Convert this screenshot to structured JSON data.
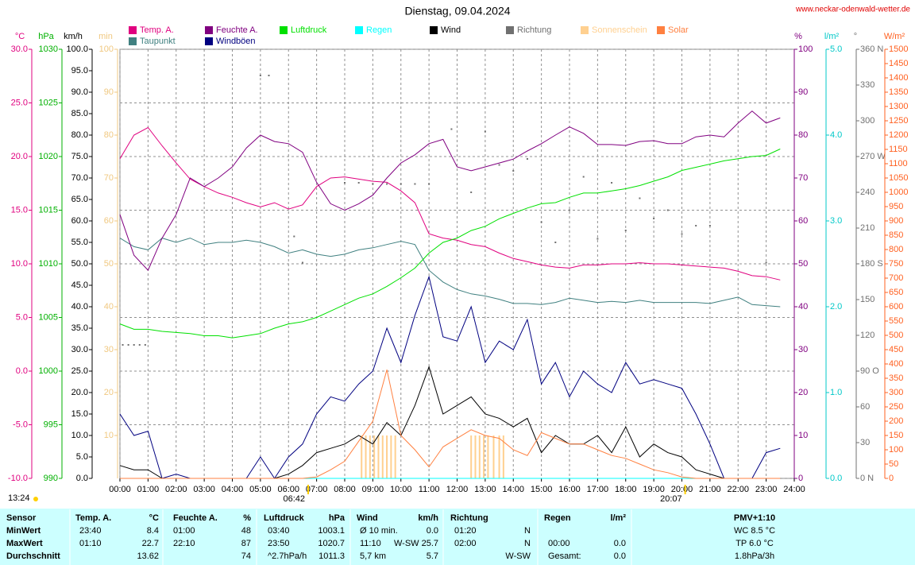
{
  "chart_data": {
    "type": "line",
    "title": "Dienstag, 09.04.2024",
    "source": "www.neckar-odenwald-wetter.de",
    "grid": true,
    "xlim": [
      0,
      24
    ],
    "xticks": [
      {
        "value": 0,
        "label": "00:00"
      },
      {
        "value": 1,
        "label": "01:00"
      },
      {
        "value": 2,
        "label": "02:00"
      },
      {
        "value": 3,
        "label": "03:00"
      },
      {
        "value": 4,
        "label": "04:00"
      },
      {
        "value": 5,
        "label": "05:00"
      },
      {
        "value": 6,
        "label": "06:00"
      },
      {
        "value": 7,
        "label": "07:00"
      },
      {
        "value": 8,
        "label": "08:00"
      },
      {
        "value": 9,
        "label": "09:00"
      },
      {
        "value": 10,
        "label": "10:00"
      },
      {
        "value": 11,
        "label": "11:00"
      },
      {
        "value": 12,
        "label": "12:00"
      },
      {
        "value": 13,
        "label": "13:00"
      },
      {
        "value": 14,
        "label": "14:00"
      },
      {
        "value": 15,
        "label": "15:00"
      },
      {
        "value": 16,
        "label": "16:00"
      },
      {
        "value": 17,
        "label": "17:00"
      },
      {
        "value": 18,
        "label": "18:00"
      },
      {
        "value": 19,
        "label": "19:00"
      },
      {
        "value": 20,
        "label": "20:00"
      },
      {
        "value": 21,
        "label": "21:00"
      },
      {
        "value": 22,
        "label": "22:00"
      },
      {
        "value": 23,
        "label": "23:00"
      },
      {
        "value": 24,
        "label": "24:00"
      }
    ],
    "sunrise": "06:42",
    "sunset": "20:07",
    "daylength": "13:24",
    "axes": [
      {
        "label": "°C",
        "color": "#e0007f",
        "lim": [
          -10,
          30
        ],
        "ticks": [
          {
            "value": 30,
            "label": "30.0"
          },
          {
            "value": 25,
            "label": "25.0"
          },
          {
            "value": 20,
            "label": "20.0"
          },
          {
            "value": 15,
            "label": "15.0"
          },
          {
            "value": 10,
            "label": "10.0"
          },
          {
            "value": 5,
            "label": "5.0"
          },
          {
            "value": 0,
            "label": "0.0"
          },
          {
            "value": -5,
            "label": "-5.0"
          },
          {
            "value": -10,
            "label": "-10.0"
          }
        ]
      },
      {
        "label": "hPa",
        "color": "#00b000",
        "lim": [
          990,
          1030
        ],
        "ticks": [
          1030,
          1025,
          1020,
          1015,
          1010,
          1005,
          1000,
          995,
          990
        ]
      },
      {
        "label": "km/h",
        "color": "#000000",
        "lim": [
          0,
          100
        ],
        "ticks": [
          {
            "value": 100,
            "label": "100.0"
          },
          {
            "value": 95,
            "label": "95.0"
          },
          {
            "value": 90,
            "label": "90.0"
          },
          {
            "value": 85,
            "label": "85.0"
          },
          {
            "value": 80,
            "label": "80.0"
          },
          {
            "value": 75,
            "label": "75.0"
          },
          {
            "value": 70,
            "label": "70.0"
          },
          {
            "value": 65,
            "label": "65.0"
          },
          {
            "value": 60,
            "label": "60.0"
          },
          {
            "value": 55,
            "label": "55.0"
          },
          {
            "value": 50,
            "label": "50.0"
          },
          {
            "value": 45,
            "label": "45.0"
          },
          {
            "value": 40,
            "label": "40.0"
          },
          {
            "value": 35,
            "label": "35.0"
          },
          {
            "value": 30,
            "label": "30.0"
          },
          {
            "value": 25,
            "label": "25.0"
          },
          {
            "value": 20,
            "label": "20.0"
          },
          {
            "value": 15,
            "label": "15.0"
          },
          {
            "value": 10,
            "label": "10.0"
          },
          {
            "value": 5,
            "label": "5.0"
          },
          {
            "value": 0,
            "label": "0.0"
          }
        ]
      },
      {
        "label": "min",
        "color": "#f0c880",
        "lim": [
          0,
          100
        ],
        "ticks": [
          100,
          90,
          80,
          70,
          60,
          50,
          40,
          30,
          20,
          10
        ]
      },
      {
        "label": "%",
        "color": "#800080",
        "lim": [
          0,
          100
        ],
        "ticks": [
          100,
          90,
          80,
          70,
          60,
          50,
          40,
          30,
          20,
          10,
          0
        ]
      },
      {
        "label": "l/m²",
        "color": "#00c8c8",
        "lim": [
          0,
          5
        ],
        "ticks": [
          {
            "value": 5,
            "label": "5.0"
          },
          {
            "value": 4,
            "label": "4.0"
          },
          {
            "value": 3,
            "label": "3.0"
          },
          {
            "value": 2,
            "label": "2.0"
          },
          {
            "value": 1,
            "label": "1.0"
          },
          {
            "value": 0,
            "label": "0.0"
          }
        ]
      },
      {
        "label": "°",
        "color": "#707070",
        "lim": [
          0,
          360
        ],
        "ticks": [
          {
            "value": 360,
            "label": "360 N"
          },
          330,
          300,
          {
            "value": 270,
            "label": "270 W"
          },
          240,
          210,
          {
            "value": 180,
            "label": "180 S"
          },
          150,
          120,
          {
            "value": 90,
            "label": "90 O"
          },
          60,
          30,
          {
            "value": 0,
            "label": "0 N"
          }
        ]
      },
      {
        "label": "W/m²",
        "color": "#ff6020",
        "lim": [
          0,
          1500
        ],
        "ticks": [
          1500,
          1450,
          1400,
          1350,
          1300,
          1250,
          1200,
          1150,
          1100,
          1050,
          1000,
          950,
          900,
          850,
          800,
          750,
          700,
          650,
          600,
          550,
          500,
          450,
          400,
          350,
          300,
          250,
          200,
          150,
          100,
          50,
          0
        ]
      }
    ],
    "x": [
      0,
      0.5,
      1,
      1.5,
      2,
      2.5,
      3,
      3.5,
      4,
      4.5,
      5,
      5.5,
      6,
      6.5,
      7,
      7.5,
      8,
      8.5,
      9,
      9.5,
      10,
      10.5,
      11,
      11.5,
      12,
      12.5,
      13,
      13.5,
      14,
      14.5,
      15,
      15.5,
      16,
      16.5,
      17,
      17.5,
      18,
      18.5,
      19,
      19.5,
      20,
      20.5,
      21,
      21.5,
      22,
      22.5,
      23,
      23.5
    ],
    "series": [
      {
        "name": "Temp. A.",
        "color": "#e0007f",
        "axis": 0,
        "style": "line",
        "values": [
          19.8,
          22,
          22.7,
          21,
          19.4,
          17.9,
          17.2,
          16.6,
          16.2,
          15.7,
          15.3,
          15.7,
          15.1,
          15.5,
          17.2,
          18,
          18.1,
          17.9,
          17.7,
          17.6,
          16.8,
          15.7,
          12.8,
          12.4,
          12.2,
          11.8,
          11.6,
          11,
          10.5,
          10.2,
          9.9,
          9.7,
          9.6,
          9.9,
          9.9,
          10,
          10,
          10.1,
          10,
          10,
          9.9,
          9.8,
          9.7,
          9.6,
          9.3,
          8.9,
          8.8,
          8.5
        ]
      },
      {
        "name": "Taupunkt",
        "color": "#408080",
        "axis": 0,
        "style": "line",
        "values": [
          12.4,
          11.6,
          11.3,
          12.4,
          12,
          12.4,
          11.8,
          12,
          12,
          12.2,
          12,
          11.6,
          11,
          11.3,
          10.9,
          10.7,
          10.9,
          11.3,
          11.5,
          11.8,
          12.1,
          11.8,
          9.4,
          8.3,
          7.6,
          7.2,
          7,
          6.7,
          6.3,
          6.3,
          6.2,
          6.4,
          6.8,
          6.6,
          6.4,
          6.5,
          6.4,
          6.6,
          6.4,
          6.4,
          6.4,
          6.4,
          6.3,
          6.6,
          6.9,
          6.2,
          6.1,
          6
        ]
      },
      {
        "name": "Feuchte A.",
        "color": "#800080",
        "axis": 4,
        "style": "line",
        "values": [
          61.5,
          52,
          48.5,
          56,
          61.5,
          70,
          68,
          70,
          72.6,
          77,
          80,
          78.5,
          78,
          76,
          69,
          64,
          62.5,
          64,
          66,
          70,
          73.5,
          75.4,
          78,
          79,
          72.6,
          71.7,
          72.6,
          73.5,
          74.4,
          76.3,
          78,
          80,
          81.9,
          80.4,
          77.8,
          77.8,
          77.6,
          78.5,
          78.7,
          78,
          78,
          79.6,
          80,
          79.6,
          82.8,
          85.6,
          82.8,
          84
        ]
      },
      {
        "name": "Windböen",
        "color": "#000080",
        "axis": 2,
        "style": "line",
        "values": [
          15,
          10,
          11,
          0,
          1,
          0,
          0,
          0,
          0,
          0,
          5,
          0,
          5,
          8,
          15,
          19,
          18,
          22,
          25,
          35,
          27,
          38,
          47,
          33,
          32,
          40,
          27,
          32,
          30,
          37,
          22,
          27,
          19,
          25,
          22,
          20,
          27,
          22,
          23,
          22,
          21,
          15,
          8,
          0,
          0,
          0,
          6,
          7
        ]
      },
      {
        "name": "Luftdruck",
        "color": "#00e000",
        "axis": 1,
        "style": "line",
        "values": [
          1004.4,
          1003.9,
          1003.9,
          1003.7,
          1003.6,
          1003.5,
          1003.3,
          1003.3,
          1003.1,
          1003.3,
          1003.5,
          1004,
          1004.4,
          1004.6,
          1005,
          1005.6,
          1006.2,
          1006.8,
          1007.2,
          1007.9,
          1008.7,
          1009.6,
          1011,
          1012,
          1012.4,
          1013.1,
          1013.5,
          1014.2,
          1014.7,
          1015.2,
          1015.6,
          1015.7,
          1016.2,
          1016.6,
          1016.6,
          1016.8,
          1017,
          1017.3,
          1017.7,
          1018.1,
          1018.7,
          1019,
          1019.3,
          1019.6,
          1019.8,
          1020,
          1020.1,
          1020.7
        ]
      },
      {
        "name": "Regen",
        "color": "#00ffff",
        "axis": 5,
        "style": "line",
        "x": [
          0,
          23.5
        ],
        "values": [
          0,
          0
        ]
      },
      {
        "name": "Wind",
        "color": "#000000",
        "axis": 2,
        "style": "line",
        "values": [
          3,
          2,
          2,
          0,
          0,
          0,
          0,
          0,
          0,
          0,
          0,
          0,
          1,
          3,
          6,
          7,
          8,
          10,
          8,
          13,
          10,
          17,
          26,
          15,
          17,
          19,
          15,
          14,
          12,
          14,
          6,
          10,
          8,
          8,
          10,
          6,
          12,
          5,
          8,
          6,
          5,
          2,
          1,
          0,
          0,
          0,
          0,
          0
        ]
      },
      {
        "name": "Richtung",
        "color": "#707070",
        "axis": 6,
        "style": "dot",
        "x": [
          0.1,
          0.3,
          0.5,
          0.7,
          0.9,
          5.0,
          5.3,
          6.2,
          6.5,
          8.0,
          8.5,
          9.0,
          9.5,
          10.0,
          10.5,
          11.0,
          11.8,
          12.5,
          13.0,
          13.5,
          14.0,
          14.5,
          15.0,
          15.5,
          16.0,
          16.5,
          17.0,
          17.5,
          18.0,
          18.5,
          19.0,
          19.5,
          20.0,
          20.5,
          21.0,
          23.0
        ],
        "values": [
          112,
          112,
          112,
          112,
          112,
          338,
          338,
          203,
          181,
          248,
          248,
          247,
          247,
          247,
          247,
          247,
          293,
          240,
          291,
          263,
          258,
          268,
          215,
          198,
          225,
          253,
          201,
          248,
          208,
          235,
          218,
          225,
          205,
          212,
          212,
          181
        ]
      },
      {
        "name": "Sonnenschein",
        "color": "#ffd090",
        "axis": 3,
        "style": "bar",
        "x": [
          8.6,
          8.75,
          8.9,
          9.05,
          9.2,
          9.35,
          9.5,
          9.65,
          9.8,
          12.5,
          12.65,
          12.8,
          12.95,
          13.1,
          13.3,
          13.5,
          13.65
        ],
        "values": [
          10,
          10,
          10,
          10,
          10,
          10,
          10,
          10,
          10,
          10,
          10,
          10,
          10,
          10,
          10,
          10,
          10
        ]
      },
      {
        "name": "Solar",
        "color": "#ff8040",
        "axis": 7,
        "style": "line",
        "values": [
          0,
          0,
          0,
          0,
          0,
          0,
          0,
          0,
          0,
          0,
          0,
          0,
          0,
          0,
          5,
          30,
          60,
          130,
          200,
          380,
          150,
          100,
          40,
          110,
          140,
          170,
          150,
          140,
          100,
          80,
          160,
          140,
          120,
          120,
          100,
          80,
          70,
          50,
          30,
          20,
          5,
          0,
          0,
          0,
          0,
          0,
          0,
          0
        ]
      }
    ]
  },
  "table": {
    "header": {
      "sensor": "Sensor",
      "temp": "Temp. A.",
      "temp_unit": "°C",
      "hum": "Feuchte A.",
      "hum_unit": "%",
      "press": "Luftdruck",
      "press_unit": "hPa",
      "wind": "Wind",
      "wind_unit": "km/h",
      "dir": "Richtung",
      "rain": "Regen",
      "rain_unit": "l/m²",
      "pmv": "PMV+1:10"
    },
    "rows": [
      {
        "label": "MinWert",
        "temp_time": "23:40",
        "temp": "8.4",
        "hum_time": "01:00",
        "hum": "48",
        "press_time": "03:40",
        "press": "1003.1",
        "wind_note": "Ø 10 min.",
        "wind": "0.0",
        "dir_time": "01:20",
        "dir": "N",
        "pmv": "WC 8.5 °C"
      },
      {
        "label": "MaxWert",
        "temp_time": "01:10",
        "temp": "22.7",
        "hum_time": "22:10",
        "hum": "87",
        "press_time": "23:50",
        "press": "1020.7",
        "wind_note": "11:10",
        "wind": "W-SW 25.7",
        "dir_time": "02:00",
        "dir": "N",
        "rain_note": "00:00",
        "rain": "0.0",
        "pmv": "TP 6.0 °C"
      },
      {
        "label": "Durchschnitt",
        "temp": "13.62",
        "hum": "74",
        "press_time": "^2.7hPa/h",
        "press": "1011.3",
        "wind_note": "5,7 km",
        "wind": "5.7",
        "dir": "W-SW",
        "rain_note": "Gesamt:",
        "rain": "0.0",
        "pmv": "1.8hPa/3h"
      }
    ]
  }
}
